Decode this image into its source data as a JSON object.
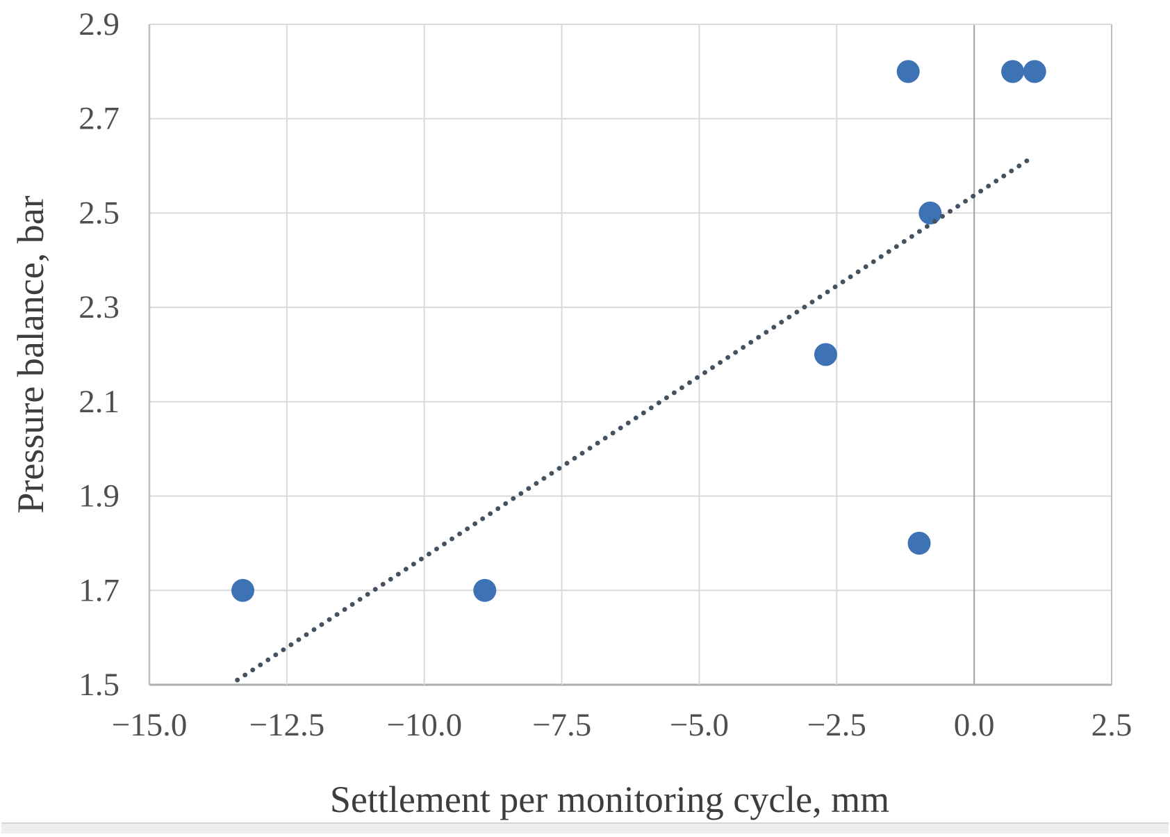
{
  "figure": {
    "bottom_divider": true
  },
  "chart_data": {
    "type": "scatter",
    "title": "",
    "xlabel": "Settlement per monitoring cycle, mm",
    "ylabel": "Pressure balance, bar",
    "xlim": [
      -15.0,
      2.5
    ],
    "ylim": [
      1.5,
      2.9
    ],
    "grid": true,
    "legend": "none",
    "x_ticks": [
      {
        "value": -15.0,
        "label": "−15.0"
      },
      {
        "value": -12.5,
        "label": "−12.5"
      },
      {
        "value": -10.0,
        "label": "−10.0"
      },
      {
        "value": -7.5,
        "label": "−7.5"
      },
      {
        "value": -5.0,
        "label": "−5.0"
      },
      {
        "value": -2.5,
        "label": "−2.5"
      },
      {
        "value": 0.0,
        "label": "0.0"
      },
      {
        "value": 2.5,
        "label": "2.5"
      }
    ],
    "y_ticks": [
      {
        "value": 1.5,
        "label": "1.5"
      },
      {
        "value": 1.7,
        "label": "1.7"
      },
      {
        "value": 1.9,
        "label": "1.9"
      },
      {
        "value": 2.1,
        "label": "2.1"
      },
      {
        "value": 2.3,
        "label": "2.3"
      },
      {
        "value": 2.5,
        "label": "2.5"
      },
      {
        "value": 2.7,
        "label": "2.7"
      },
      {
        "value": 2.9,
        "label": "2.9"
      }
    ],
    "series": [
      {
        "name": "observations",
        "kind": "points",
        "marker": "circle",
        "points": [
          [
            -13.3,
            1.7
          ],
          [
            -8.9,
            1.7
          ],
          [
            -2.7,
            2.2
          ],
          [
            -1.2,
            2.8
          ],
          [
            -1.0,
            1.8
          ],
          [
            -0.8,
            2.5
          ],
          [
            0.7,
            2.8
          ],
          [
            1.1,
            2.8
          ]
        ]
      },
      {
        "name": "trendline",
        "kind": "dotted-line",
        "points": [
          [
            -13.4,
            1.51
          ],
          [
            1.08,
            2.62
          ]
        ]
      }
    ],
    "colors": {
      "point_fill": "#3d72b4",
      "trend_dots": "#44515e",
      "gridline": "#d9d9d9",
      "plot_border": "#bdbdbd",
      "bottom_axis": "#aeaeae",
      "zero_axis": "#a0a0a0",
      "tick_text": "#4f4f4f",
      "title_text": "#3d3d3d",
      "divider_line": "#d5d5d5",
      "divider_fill": "#ededed"
    }
  }
}
